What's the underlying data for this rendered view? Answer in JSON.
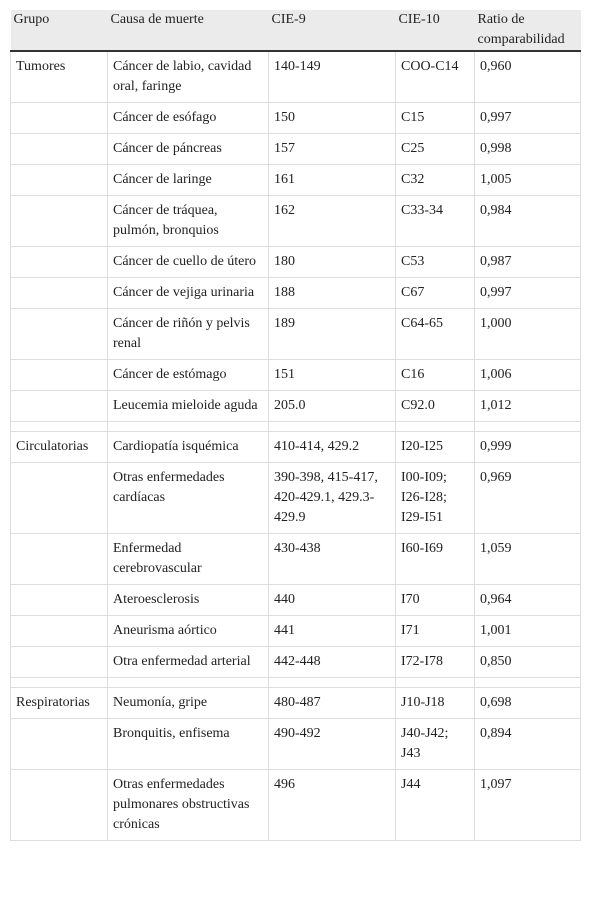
{
  "table": {
    "header": [
      "Grupo",
      "Causa de muerte",
      "CIE-9",
      "CIE-10",
      "Ratio de comparabilidad"
    ],
    "groups": [
      {
        "group": "Tumores",
        "rows": [
          [
            "Cáncer de labio, cavidad oral, faringe",
            "140-149",
            "COO-C14",
            "0,960"
          ],
          [
            "Cáncer de esófago",
            "150",
            "C15",
            "0,997"
          ],
          [
            "Cáncer de páncreas",
            "157",
            "C25",
            "0,998"
          ],
          [
            "Cáncer de laringe",
            "161",
            "C32",
            "1,005"
          ],
          [
            "Cáncer de tráquea, pulmón, bronquios",
            "162",
            "C33-34",
            "0,984"
          ],
          [
            "Cáncer de cuello de útero",
            "180",
            "C53",
            "0,987"
          ],
          [
            "Cáncer de vejiga urinaria",
            "188",
            "C67",
            "0,997"
          ],
          [
            "Cáncer de riñón y pelvis renal",
            "189",
            "C64-65",
            "1,000"
          ],
          [
            "Cáncer de estómago",
            "151",
            "C16",
            "1,006"
          ],
          [
            "Leucemia mieloide aguda",
            "205.0",
            "C92.0",
            "1,012"
          ]
        ]
      },
      {
        "group": "Circulatorias",
        "rows": [
          [
            "Cardiopatía isquémica",
            "410-414, 429.2",
            "I20-I25",
            "0,999"
          ],
          [
            "Otras enfermedades cardíacas",
            "390-398, 415-417, 420-429.1, 429.3-429.9",
            "I00-I09; I26-I28; I29-I51",
            "0,969"
          ],
          [
            "Enfermedad cerebrovascular",
            "430-438",
            "I60-I69",
            "1,059"
          ],
          [
            "Ateroesclerosis",
            "440",
            "I70",
            "0,964"
          ],
          [
            "Aneurisma aórtico",
            "441",
            "I71",
            "1,001"
          ],
          [
            "Otra enfermedad arterial",
            "442-448",
            "I72-I78",
            "0,850"
          ]
        ]
      },
      {
        "group": "Respiratorias",
        "rows": [
          [
            "Neumonía, gripe",
            "480-487",
            "J10-J18",
            "0,698"
          ],
          [
            "Bronquitis, enfisema",
            "490-492",
            "J40-J42; J43",
            "0,894"
          ],
          [
            "Otras enfermedades pulmonares obstructivas crónicas",
            "496",
            "J44",
            "1,097"
          ]
        ]
      }
    ]
  }
}
